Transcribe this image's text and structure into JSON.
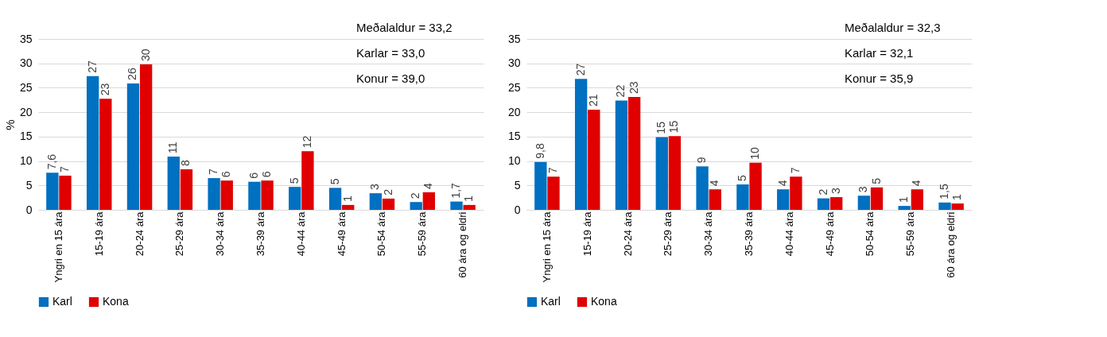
{
  "chart_data": [
    {
      "type": "bar",
      "ylabel": "%",
      "categories": [
        "Yngri en 15 ára",
        "15-19 ára",
        "20-24 ára",
        "25-29 ára",
        "30-34 ára",
        "35-39 ára",
        "40-44 ára",
        "45-49 ára",
        "50-54 ára",
        "55-59 ára",
        "60 ára og eldri"
      ],
      "series": [
        {
          "name": "Karl",
          "color": "#0070c0",
          "values": [
            7.6,
            27.4,
            25.9,
            10.9,
            6.5,
            5.75,
            4.7,
            4.5,
            3.4,
            1.6,
            1.7
          ],
          "value_labels": [
            "7,6",
            "27",
            "26",
            "11",
            "7",
            "6",
            "5",
            "5",
            "3",
            "2",
            "1,7"
          ]
        },
        {
          "name": "Kona",
          "color": "#e00000",
          "values": [
            7.0,
            22.75,
            29.8,
            8.3,
            6.0,
            6.0,
            12.0,
            1.0,
            2.3,
            3.6,
            1.0
          ],
          "value_labels": [
            "7",
            "23",
            "30",
            "8",
            "6",
            "6",
            "12",
            "1",
            "2",
            "4",
            "1"
          ]
        }
      ],
      "ylim": [
        0,
        35
      ],
      "yticks": [
        0,
        5,
        10,
        15,
        20,
        25,
        30,
        35
      ],
      "grid": "y",
      "legend": "bottom",
      "annotations": [
        "Meðalaldur = 33,2",
        "Karlar = 33,0",
        "Konur = 39,0"
      ]
    },
    {
      "type": "bar",
      "categories": [
        "Yngri en 15 ára",
        "15-19 ára",
        "20-24 ára",
        "25-29 ára",
        "30-34 ára",
        "35-39 ára",
        "40-44 ára",
        "45-49 ára",
        "50-54 ára",
        "55-59 ára",
        "60 ára og eldri"
      ],
      "series": [
        {
          "name": "Karl",
          "color": "#0070c0",
          "values": [
            9.8,
            26.8,
            22.4,
            14.9,
            8.9,
            5.2,
            4.2,
            2.35,
            2.9,
            0.8,
            1.5
          ],
          "value_labels": [
            "9,8",
            "27",
            "22",
            "15",
            "9",
            "5",
            "4",
            "2",
            "3",
            "1",
            "1,5"
          ]
        },
        {
          "name": "Kona",
          "color": "#e00000",
          "values": [
            6.8,
            20.5,
            23.1,
            15.1,
            4.2,
            9.65,
            6.8,
            2.6,
            4.6,
            4.2,
            1.3
          ],
          "value_labels": [
            "7",
            "21",
            "23",
            "15",
            "4",
            "10",
            "7",
            "3",
            "5",
            "4",
            "1"
          ]
        }
      ],
      "ylim": [
        0,
        35
      ],
      "yticks": [
        0,
        5,
        10,
        15,
        20,
        25,
        30,
        35
      ],
      "grid": "y",
      "legend": "bottom",
      "annotations": [
        "Meðalaldur = 32,3",
        "Karlar = 32,1",
        "Konur = 35,9"
      ]
    }
  ]
}
